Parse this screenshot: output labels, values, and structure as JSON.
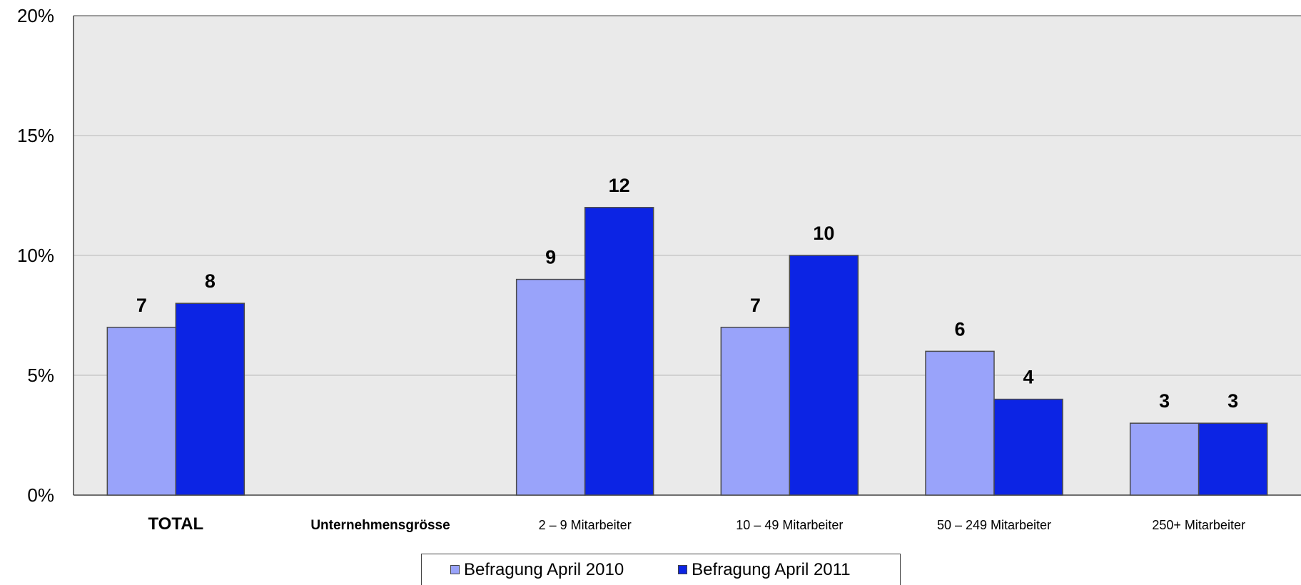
{
  "chart_data": {
    "type": "bar",
    "title": "",
    "xlabel": "",
    "ylabel": "",
    "ylim": [
      0,
      20
    ],
    "y_ticks": [
      0,
      5,
      10,
      15,
      20
    ],
    "y_tick_labels": [
      "0%",
      "5%",
      "10%",
      "15%",
      "20%"
    ],
    "grid": "horizontal",
    "legend_position": "bottom-center",
    "categories": [
      "TOTAL",
      "Unternehmensgrösse",
      "2 – 9 Mitarbeiter",
      "10 – 49 Mitarbeiter",
      "50 – 249 Mitarbeiter",
      "250+ Mitarbeiter"
    ],
    "category_bold": [
      true,
      true,
      false,
      false,
      false,
      false
    ],
    "series": [
      {
        "name": "Befragung April 2010",
        "color": "#99A3FA",
        "values": [
          7,
          null,
          9,
          7,
          6,
          3
        ]
      },
      {
        "name": "Befragung April 2011",
        "color": "#0C24E4",
        "values": [
          8,
          null,
          12,
          10,
          4,
          3
        ]
      }
    ],
    "data_labels": [
      [
        "7",
        "",
        "9",
        "7",
        "6",
        "3"
      ],
      [
        "8",
        "",
        "12",
        "10",
        "4",
        "3"
      ]
    ],
    "colors": {
      "plot_background": "#EAEAEA",
      "gridline": "#B8B8B8",
      "bar_border": "#4A4A4A",
      "axis": "#404040"
    }
  }
}
